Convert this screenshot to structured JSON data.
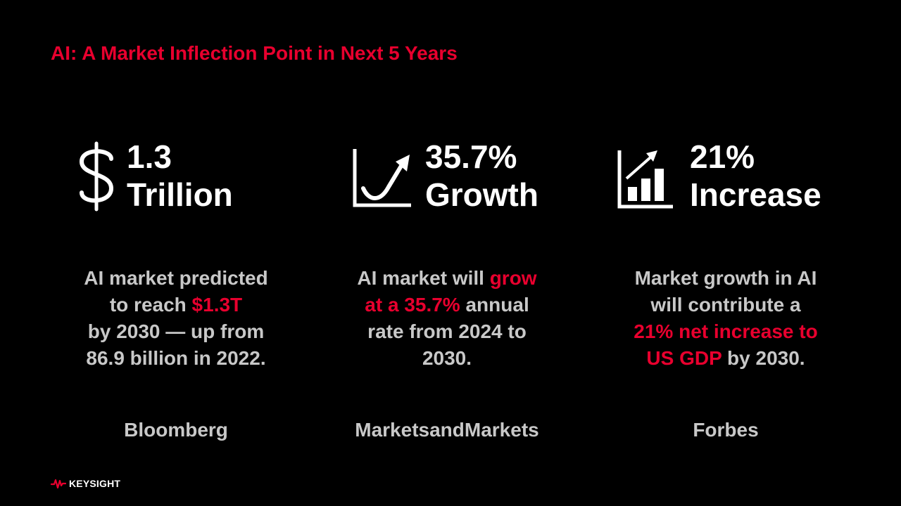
{
  "slide": {
    "title": "AI: A Market Inflection Point in Next 5 Years"
  },
  "columns": [
    {
      "icon": "dollar-sign-icon",
      "stat_line1": "1.3",
      "stat_line2": "Trillion",
      "desc_1": "AI market predicted",
      "desc_2": "to reach ",
      "desc_hl": "$1.3T",
      "desc_3": "by 2030 — up from",
      "desc_4": "86.9 billion in 2022.",
      "source": "Bloomberg"
    },
    {
      "icon": "growth-curve-icon",
      "stat_line1": "35.7%",
      "stat_line2": "Growth",
      "desc_1": "AI market will ",
      "desc_hl1": "grow",
      "desc_hl2": "at a 35.7%",
      "desc_2": " annual",
      "desc_3": "rate from 2024 to",
      "desc_4": "2030.",
      "source": "MarketsandMarkets"
    },
    {
      "icon": "bar-chart-up-icon",
      "stat_line1": "21%",
      "stat_line2": "Increase",
      "desc_1": "Market growth in AI",
      "desc_2": "will contribute a",
      "desc_hl1": "21% net increase to",
      "desc_hl2": "US GDP",
      "desc_3": " by 2030.",
      "source": "Forbes"
    }
  ],
  "footer": {
    "logo_text": "KEYSIGHT"
  },
  "colors": {
    "accent": "#e8002e",
    "background": "#000000",
    "body_text": "#c8c8c8"
  }
}
